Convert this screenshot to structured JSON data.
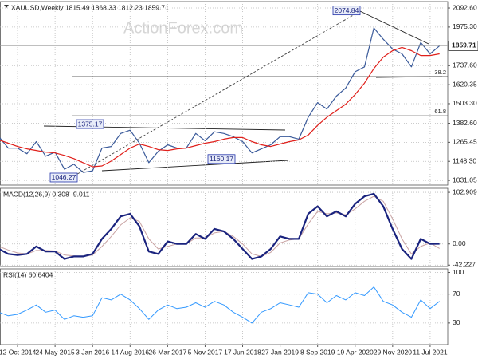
{
  "chart_data": [
    {
      "type": "line",
      "title": "XAUUSD,Weekly  1815.49 1868.33 1812.23 1859.71",
      "watermark": "ActionForex.com",
      "ylim": [
        1002,
        2132
      ],
      "yticks": [
        {
          "value": 2092.6,
          "label": "2092.60"
        },
        {
          "value": 1975.3,
          "label": "1975.30"
        },
        {
          "value": 1737.6,
          "label": "1737.60"
        },
        1620.35,
        {
          "value": 1503.3,
          "label": "1503.30"
        },
        {
          "value": 1382.6,
          "label": "1382.60"
        },
        1265.45,
        {
          "value": 1148.3,
          "label": "1148.30"
        },
        1031.05
      ],
      "grid": true,
      "price_tag": 1859.71,
      "price_labels": [
        2074.84,
        1375.17,
        1160.17,
        1046.27
      ],
      "fib_levels": [
        {
          "text": "38.2",
          "price": 1670
        },
        {
          "text": "61.8",
          "price": 1429
        }
      ],
      "series": [
        {
          "name": "Close",
          "color": "#3a5a9a",
          "width": 1.2,
          "values": [
            1300,
            1230,
            1230,
            1195,
            1270,
            1180,
            1205,
            1100,
            1130,
            1080,
            1090,
            1230,
            1240,
            1320,
            1340,
            1260,
            1140,
            1210,
            1250,
            1230,
            1230,
            1320,
            1275,
            1330,
            1320,
            1300,
            1270,
            1200,
            1225,
            1250,
            1300,
            1300,
            1285,
            1420,
            1510,
            1470,
            1550,
            1600,
            1700,
            1730,
            1970,
            1900,
            1840,
            1810,
            1730,
            1880,
            1810,
            1860
          ]
        },
        {
          "name": "MA",
          "color": "#e0201b",
          "width": 1.2,
          "values": [
            1280,
            1260,
            1240,
            1225,
            1215,
            1205,
            1200,
            1185,
            1165,
            1140,
            1115,
            1120,
            1150,
            1190,
            1230,
            1255,
            1240,
            1220,
            1215,
            1225,
            1230,
            1245,
            1260,
            1270,
            1285,
            1295,
            1295,
            1270,
            1250,
            1240,
            1255,
            1270,
            1280,
            1310,
            1370,
            1420,
            1460,
            1500,
            1560,
            1630,
            1720,
            1790,
            1830,
            1850,
            1830,
            1800,
            1800,
            1810
          ]
        }
      ]
    },
    {
      "type": "line",
      "title": "MACD(12,26,9) 0.308 -9.011",
      "ylim": [
        -45,
        111
      ],
      "yticks": [
        102.909,
        {
          "value": 0,
          "label": "0.00"
        },
        -42.227
      ],
      "grid": true,
      "series": [
        {
          "name": "Signal",
          "color": "#c9a3a3",
          "width": 1,
          "values": [
            -5,
            -12,
            -18,
            -20,
            -13,
            -13,
            -14,
            -22,
            -24,
            -25,
            -22,
            -5,
            15,
            38,
            52,
            45,
            10,
            -10,
            -5,
            0,
            0,
            12,
            12,
            22,
            25,
            15,
            0,
            -20,
            -25,
            -17,
            2,
            8,
            10,
            40,
            65,
            60,
            62,
            58,
            70,
            85,
            95,
            85,
            50,
            10,
            -20,
            -5,
            2,
            -9
          ]
        },
        {
          "name": "MACD",
          "color": "#1a237e",
          "width": 2.2,
          "values": [
            -10,
            -20,
            -22,
            -20,
            -5,
            -15,
            -15,
            -30,
            -25,
            -25,
            -20,
            10,
            30,
            55,
            60,
            35,
            -15,
            -20,
            5,
            0,
            0,
            20,
            10,
            30,
            25,
            10,
            -10,
            -30,
            -25,
            -10,
            15,
            10,
            10,
            60,
            75,
            55,
            65,
            55,
            80,
            95,
            100,
            75,
            30,
            -10,
            -30,
            10,
            0,
            0.3
          ]
        }
      ]
    },
    {
      "type": "line",
      "title": "RSI(14) 60.6404",
      "ylim": [
        0,
        105
      ],
      "yticks": [
        100,
        70,
        30
      ],
      "grid": true,
      "categories": [
        null,
        null,
        "12 Oct 2014",
        null,
        null,
        null,
        "24 May 2015",
        null,
        null,
        null,
        "3 Jan 2016",
        null,
        null,
        null,
        "14 Aug 2016",
        null,
        null,
        null,
        "26 Mar 2017",
        null,
        null,
        null,
        "5 Nov 2017",
        null,
        null,
        null,
        "17 Jun 2018",
        null,
        null,
        null,
        "27 Jan 2019",
        null,
        null,
        null,
        "8 Sep 2019",
        null,
        null,
        null,
        "19 Apr 2020",
        null,
        null,
        null,
        "29 Nov 2020",
        null,
        null,
        null,
        "11 Jul 2021",
        null
      ],
      "series": [
        {
          "name": "RSI",
          "color": "#3399ff",
          "width": 1,
          "values": [
            45,
            40,
            42,
            48,
            55,
            45,
            48,
            35,
            40,
            38,
            40,
            65,
            62,
            70,
            62,
            50,
            35,
            48,
            55,
            50,
            52,
            58,
            52,
            60,
            55,
            45,
            38,
            30,
            45,
            50,
            58,
            55,
            52,
            72,
            70,
            58,
            68,
            62,
            72,
            68,
            80,
            60,
            55,
            45,
            38,
            62,
            50,
            60
          ]
        }
      ]
    }
  ]
}
